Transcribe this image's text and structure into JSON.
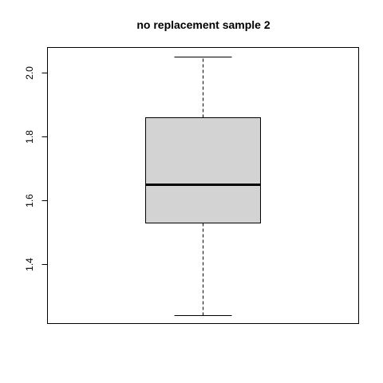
{
  "chart_data": {
    "type": "boxplot",
    "title": "no replacement sample 2",
    "xlabel": "",
    "ylabel": "",
    "ylim": [
      1.215,
      2.08
    ],
    "yticks": [
      1.4,
      1.6,
      1.8,
      2.0
    ],
    "ytick_labels": [
      "1.4",
      "1.6",
      "1.8",
      "2.0"
    ],
    "boxes": [
      {
        "name": "",
        "min": 1.24,
        "q1": 1.53,
        "median": 1.65,
        "q3": 1.86,
        "max": 2.05
      }
    ],
    "colors": {
      "box_fill": "#d3d3d3",
      "line": "#000000",
      "background": "#ffffff"
    },
    "grid": false,
    "legend": "none"
  }
}
